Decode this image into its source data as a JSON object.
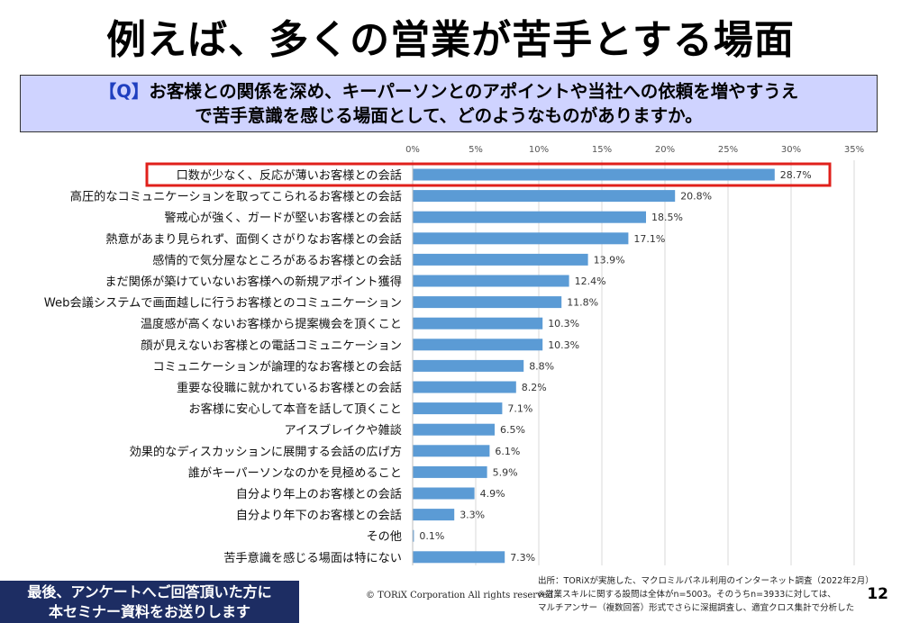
{
  "slide": {
    "title": "例えば、多くの営業が苦手とする場面",
    "question_tag": "【Q】",
    "question_line1": "お客様との関係を深め、キーパーソンとのアポイントや当社への依頼を増やすうえ",
    "question_line2": "で苦手意識を感じる場面として、どのようなものがありますか。",
    "footer_line1": "最後、アンケートへご回答頂いた方に",
    "footer_line2": "本セミナー資料をお送りします",
    "copyright": "© TORiX Corporation All rights reserved.",
    "source_line1": "出所：TORiXが実施した、マクロミルパネル利用のインターネット調査（2022年2月）",
    "source_line2": "※営業スキルに関する設問は全体がn=5003。そのうちn=3933に対しては、",
    "source_line3": "マルチアンサー（複数回答）形式でさらに深掘調査し、適宜クロス集計で分析した",
    "page_number": "12"
  },
  "colors": {
    "bar": "#5b9bd5",
    "highlight_border": "#e0201b",
    "grid": "#d9d9d9",
    "question_bg": "#cfd3ff",
    "footer_bg": "#1d2d63"
  },
  "chart_data": {
    "type": "bar",
    "orientation": "horizontal",
    "categories": [
      "口数が少なく、反応が薄いお客様との会話",
      "高圧的なコミュニケーションを取ってこられるお客様との会話",
      "警戒心が強く、ガードが堅いお客様との会話",
      "熱意があまり見られず、面倒くさがりなお客様との会話",
      "感情的で気分屋なところがあるお客様との会話",
      "まだ関係が築けていないお客様への新規アポイント獲得",
      "Web会議システムで画面越しに行うお客様とのコミュニケーション",
      "温度感が高くないお客様から提案機会を頂くこと",
      "顔が見えないお客様との電話コミュニケーション",
      "コミュニケーションが論理的なお客様との会話",
      "重要な役職に就かれているお客様との会話",
      "お客様に安心して本音を話して頂くこと",
      "アイスブレイクや雑談",
      "効果的なディスカッションに展開する会話の広げ方",
      "誰がキーパーソンなのかを見極めること",
      "自分より年上のお客様との会話",
      "自分より年下のお客様との会話",
      "その他",
      "苦手意識を感じる場面は特にない"
    ],
    "values": [
      28.7,
      20.8,
      18.5,
      17.1,
      13.9,
      12.4,
      11.8,
      10.3,
      10.3,
      8.8,
      8.2,
      7.1,
      6.5,
      6.1,
      5.9,
      4.9,
      3.3,
      0.1,
      7.3
    ],
    "value_labels": [
      "28.7%",
      "20.8%",
      "18.5%",
      "17.1%",
      "13.9%",
      "12.4%",
      "11.8%",
      "10.3%",
      "10.3%",
      "8.8%",
      "8.2%",
      "7.1%",
      "6.5%",
      "6.1%",
      "5.9%",
      "4.9%",
      "3.3%",
      "0.1%",
      "7.3%"
    ],
    "xticks": [
      0,
      5,
      10,
      15,
      20,
      25,
      30,
      35
    ],
    "xtick_labels": [
      "0%",
      "5%",
      "10%",
      "15%",
      "20%",
      "25%",
      "30%",
      "35%"
    ],
    "xlim": [
      0,
      35
    ],
    "highlighted_index": 0,
    "axis_position": "top",
    "grid": true
  }
}
